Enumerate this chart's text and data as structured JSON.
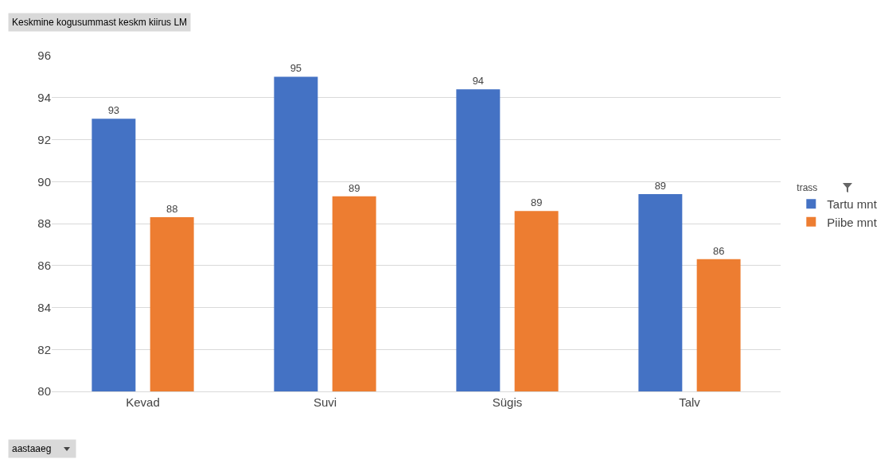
{
  "chart_data": {
    "type": "bar",
    "title": "Keskmine kogusummast keskm kiirus LM",
    "xlabel": "aastaaeg",
    "legend_title": "trass",
    "categories": [
      "Kevad",
      "Suvi",
      "Sügis",
      "Talv"
    ],
    "series": [
      {
        "name": "Tartu mnt",
        "color": "#4472c4",
        "values": [
          93.0,
          95.0,
          94.4,
          89.4
        ],
        "value_labels": [
          "93",
          "95",
          "94",
          "89"
        ]
      },
      {
        "name": "Piibe mnt",
        "color": "#ed7d31",
        "values": [
          88.3,
          89.3,
          88.6,
          86.3
        ],
        "value_labels": [
          "88",
          "89",
          "89",
          "86"
        ]
      }
    ],
    "ylim": [
      80,
      96
    ],
    "yticks": [
      80,
      82,
      84,
      86,
      88,
      90,
      92,
      94,
      96
    ],
    "grid": "y",
    "legend": "right"
  }
}
